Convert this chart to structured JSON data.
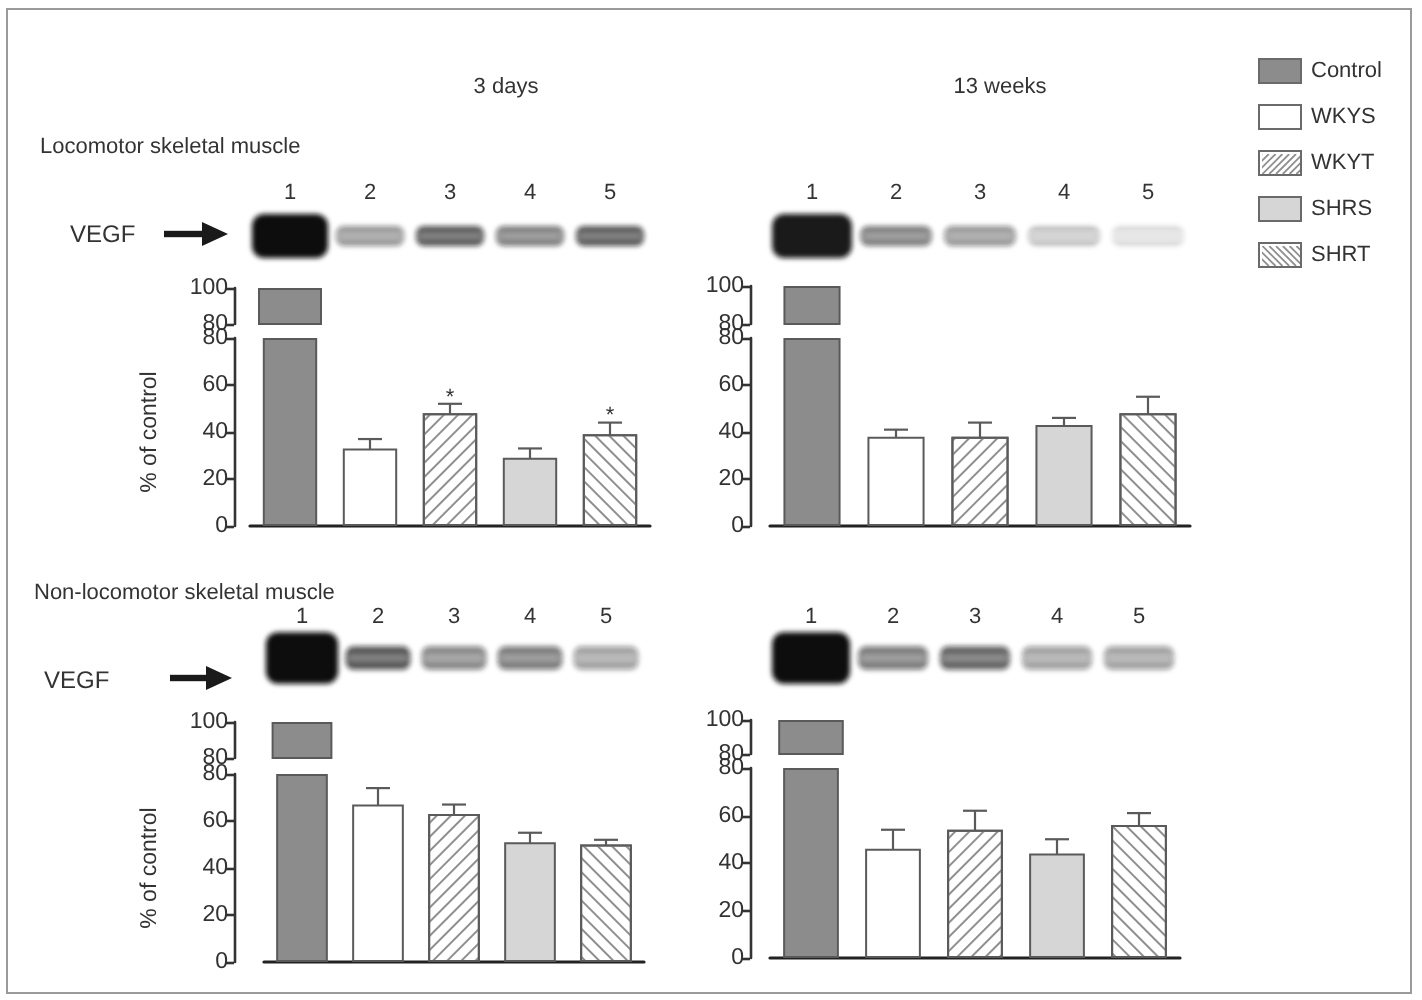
{
  "chart_data": [
    {
      "type": "bar",
      "title": "3 days",
      "subtitle": "Locomotor skeletal muscle",
      "annotations": [
        "VEGF"
      ],
      "categories": [
        "1",
        "2",
        "3",
        "4",
        "5"
      ],
      "series": [
        {
          "color": "#8c8c8c",
          "values": [
            100,
            null,
            null,
            null,
            null
          ]
        }
      ],
      "ylim": [
        80,
        100
      ],
      "yticks": [
        80,
        100
      ]
    },
    {
      "type": "bar",
      "ylabel": "% of control",
      "annotations": [
        "*",
        "*"
      ],
      "categories": [
        "1",
        "2",
        "3",
        "4",
        "5"
      ],
      "stacked": true,
      "series": [
        {
          "color": "#8c8c8c",
          "values": [
            80,
            null,
            null,
            null,
            null
          ]
        },
        {
          "color": "#ffffff",
          "values": [
            null,
            33,
            null,
            null,
            null
          ],
          "errors": [
            null,
            4,
            null,
            null,
            null
          ]
        },
        {
          "color": "#ffffff",
          "values": [
            null,
            null,
            48,
            null,
            null
          ],
          "errors": [
            null,
            null,
            4,
            null,
            null
          ]
        },
        {
          "color": "#d6d6d6",
          "values": [
            null,
            null,
            null,
            29,
            null
          ],
          "errors": [
            null,
            null,
            null,
            4,
            null
          ]
        },
        {
          "color": "#ffffff",
          "values": [
            null,
            null,
            null,
            null,
            39
          ],
          "errors": [
            null,
            null,
            null,
            null,
            5
          ]
        }
      ],
      "ylim": [
        0,
        80
      ],
      "yticks": [
        0,
        20,
        40,
        60,
        80
      ],
      "tick_labels": "y"
    },
    {
      "type": "bar",
      "title": "13 weeks",
      "categories": [
        "1",
        "2",
        "3",
        "4",
        "5"
      ],
      "stacked": true,
      "series": [
        {
          "name": "Control",
          "color": "#8c8c8c",
          "values": [
            100,
            null,
            null,
            null,
            null
          ]
        },
        {
          "name": "WKYS",
          "color": "#ffffff",
          "values": [
            null,
            null,
            null,
            null,
            null
          ]
        },
        {
          "name": "WKYT",
          "color": "#ffffff",
          "values": [
            null,
            null,
            null,
            null,
            null
          ]
        },
        {
          "name": "SHRS",
          "color": "#d6d6d6",
          "values": [
            null,
            null,
            null,
            null,
            null
          ]
        },
        {
          "name": "SHRT",
          "color": "#ffffff",
          "values": [
            null,
            null,
            null,
            null,
            null
          ]
        }
      ],
      "ylim": [
        80,
        100
      ],
      "yticks": [
        80,
        100
      ],
      "legend": "right"
    },
    {
      "type": "bar",
      "categories": [
        "1",
        "2",
        "3",
        "4",
        "5"
      ],
      "stacked": true,
      "series": [
        {
          "color": "#8c8c8c",
          "values": [
            80,
            null,
            null,
            null,
            null
          ]
        },
        {
          "color": "#ffffff",
          "values": [
            null,
            38,
            null,
            null,
            null
          ],
          "errors": [
            null,
            3,
            null,
            null,
            null
          ]
        },
        {
          "color": "#ffffff",
          "values": [
            null,
            null,
            38,
            null,
            null
          ],
          "errors": [
            null,
            null,
            6,
            null,
            null
          ]
        },
        {
          "color": "#d6d6d6",
          "values": [
            null,
            null,
            null,
            43,
            null
          ],
          "errors": [
            null,
            null,
            null,
            3,
            null
          ]
        },
        {
          "color": "#ffffff",
          "values": [
            null,
            null,
            null,
            null,
            48
          ],
          "errors": [
            null,
            null,
            null,
            null,
            7
          ]
        }
      ],
      "ylim": [
        0,
        80
      ],
      "yticks": [
        0,
        20,
        40,
        60,
        80
      ],
      "tick_labels": "y"
    },
    {
      "type": "bar",
      "subtitle": "Non-locomotor skeletal muscle",
      "annotations": [
        "VEGF"
      ],
      "categories": [
        "1",
        "2",
        "3",
        "4",
        "5"
      ],
      "series": [
        {
          "color": "#8c8c8c",
          "values": [
            100,
            null,
            null,
            null,
            null
          ]
        }
      ],
      "ylim": [
        80,
        100
      ],
      "yticks": [
        80,
        100
      ]
    },
    {
      "type": "bar",
      "ylabel": "% of control",
      "categories": [
        "1",
        "2",
        "3",
        "4",
        "5"
      ],
      "stacked": true,
      "series": [
        {
          "color": "#8c8c8c",
          "values": [
            80,
            null,
            null,
            null,
            null
          ]
        },
        {
          "color": "#ffffff",
          "values": [
            null,
            67,
            null,
            null,
            null
          ],
          "errors": [
            null,
            7,
            null,
            null,
            null
          ]
        },
        {
          "color": "#ffffff",
          "values": [
            null,
            null,
            63,
            null,
            null
          ],
          "errors": [
            null,
            null,
            4,
            null,
            null
          ]
        },
        {
          "color": "#d6d6d6",
          "values": [
            null,
            null,
            null,
            51,
            null
          ],
          "errors": [
            null,
            null,
            null,
            4,
            null
          ]
        },
        {
          "color": "#ffffff",
          "values": [
            null,
            null,
            null,
            null,
            50
          ],
          "errors": [
            null,
            null,
            null,
            null,
            2
          ]
        }
      ],
      "ylim": [
        0,
        80
      ],
      "yticks": [
        0,
        20,
        40,
        60,
        80
      ],
      "tick_labels": "y"
    },
    {
      "type": "bar",
      "categories": [
        "1",
        "2",
        "3",
        "4",
        "5"
      ],
      "series": [
        {
          "color": "#8c8c8c",
          "values": [
            100,
            null,
            null,
            null,
            null
          ]
        }
      ],
      "ylim": [
        80,
        100
      ],
      "yticks": [
        80,
        100
      ]
    },
    {
      "type": "bar",
      "categories": [
        "1",
        "2",
        "3",
        "4",
        "5"
      ],
      "stacked": true,
      "series": [
        {
          "color": "#8c8c8c",
          "values": [
            80,
            null,
            null,
            null,
            null
          ]
        },
        {
          "color": "#ffffff",
          "values": [
            null,
            46,
            null,
            null,
            null
          ],
          "errors": [
            null,
            8,
            null,
            null,
            null
          ]
        },
        {
          "color": "#ffffff",
          "values": [
            null,
            null,
            54,
            null,
            null
          ],
          "errors": [
            null,
            null,
            8,
            null,
            null
          ]
        },
        {
          "color": "#d6d6d6",
          "values": [
            null,
            null,
            null,
            44,
            null
          ],
          "errors": [
            null,
            null,
            null,
            6,
            null
          ]
        },
        {
          "color": "#ffffff",
          "values": [
            null,
            null,
            null,
            null,
            56
          ],
          "errors": [
            null,
            null,
            null,
            null,
            5
          ]
        }
      ],
      "ylim": [
        0,
        80
      ],
      "yticks": [
        0,
        20,
        40,
        60,
        80
      ],
      "tick_labels": "y"
    }
  ]
}
